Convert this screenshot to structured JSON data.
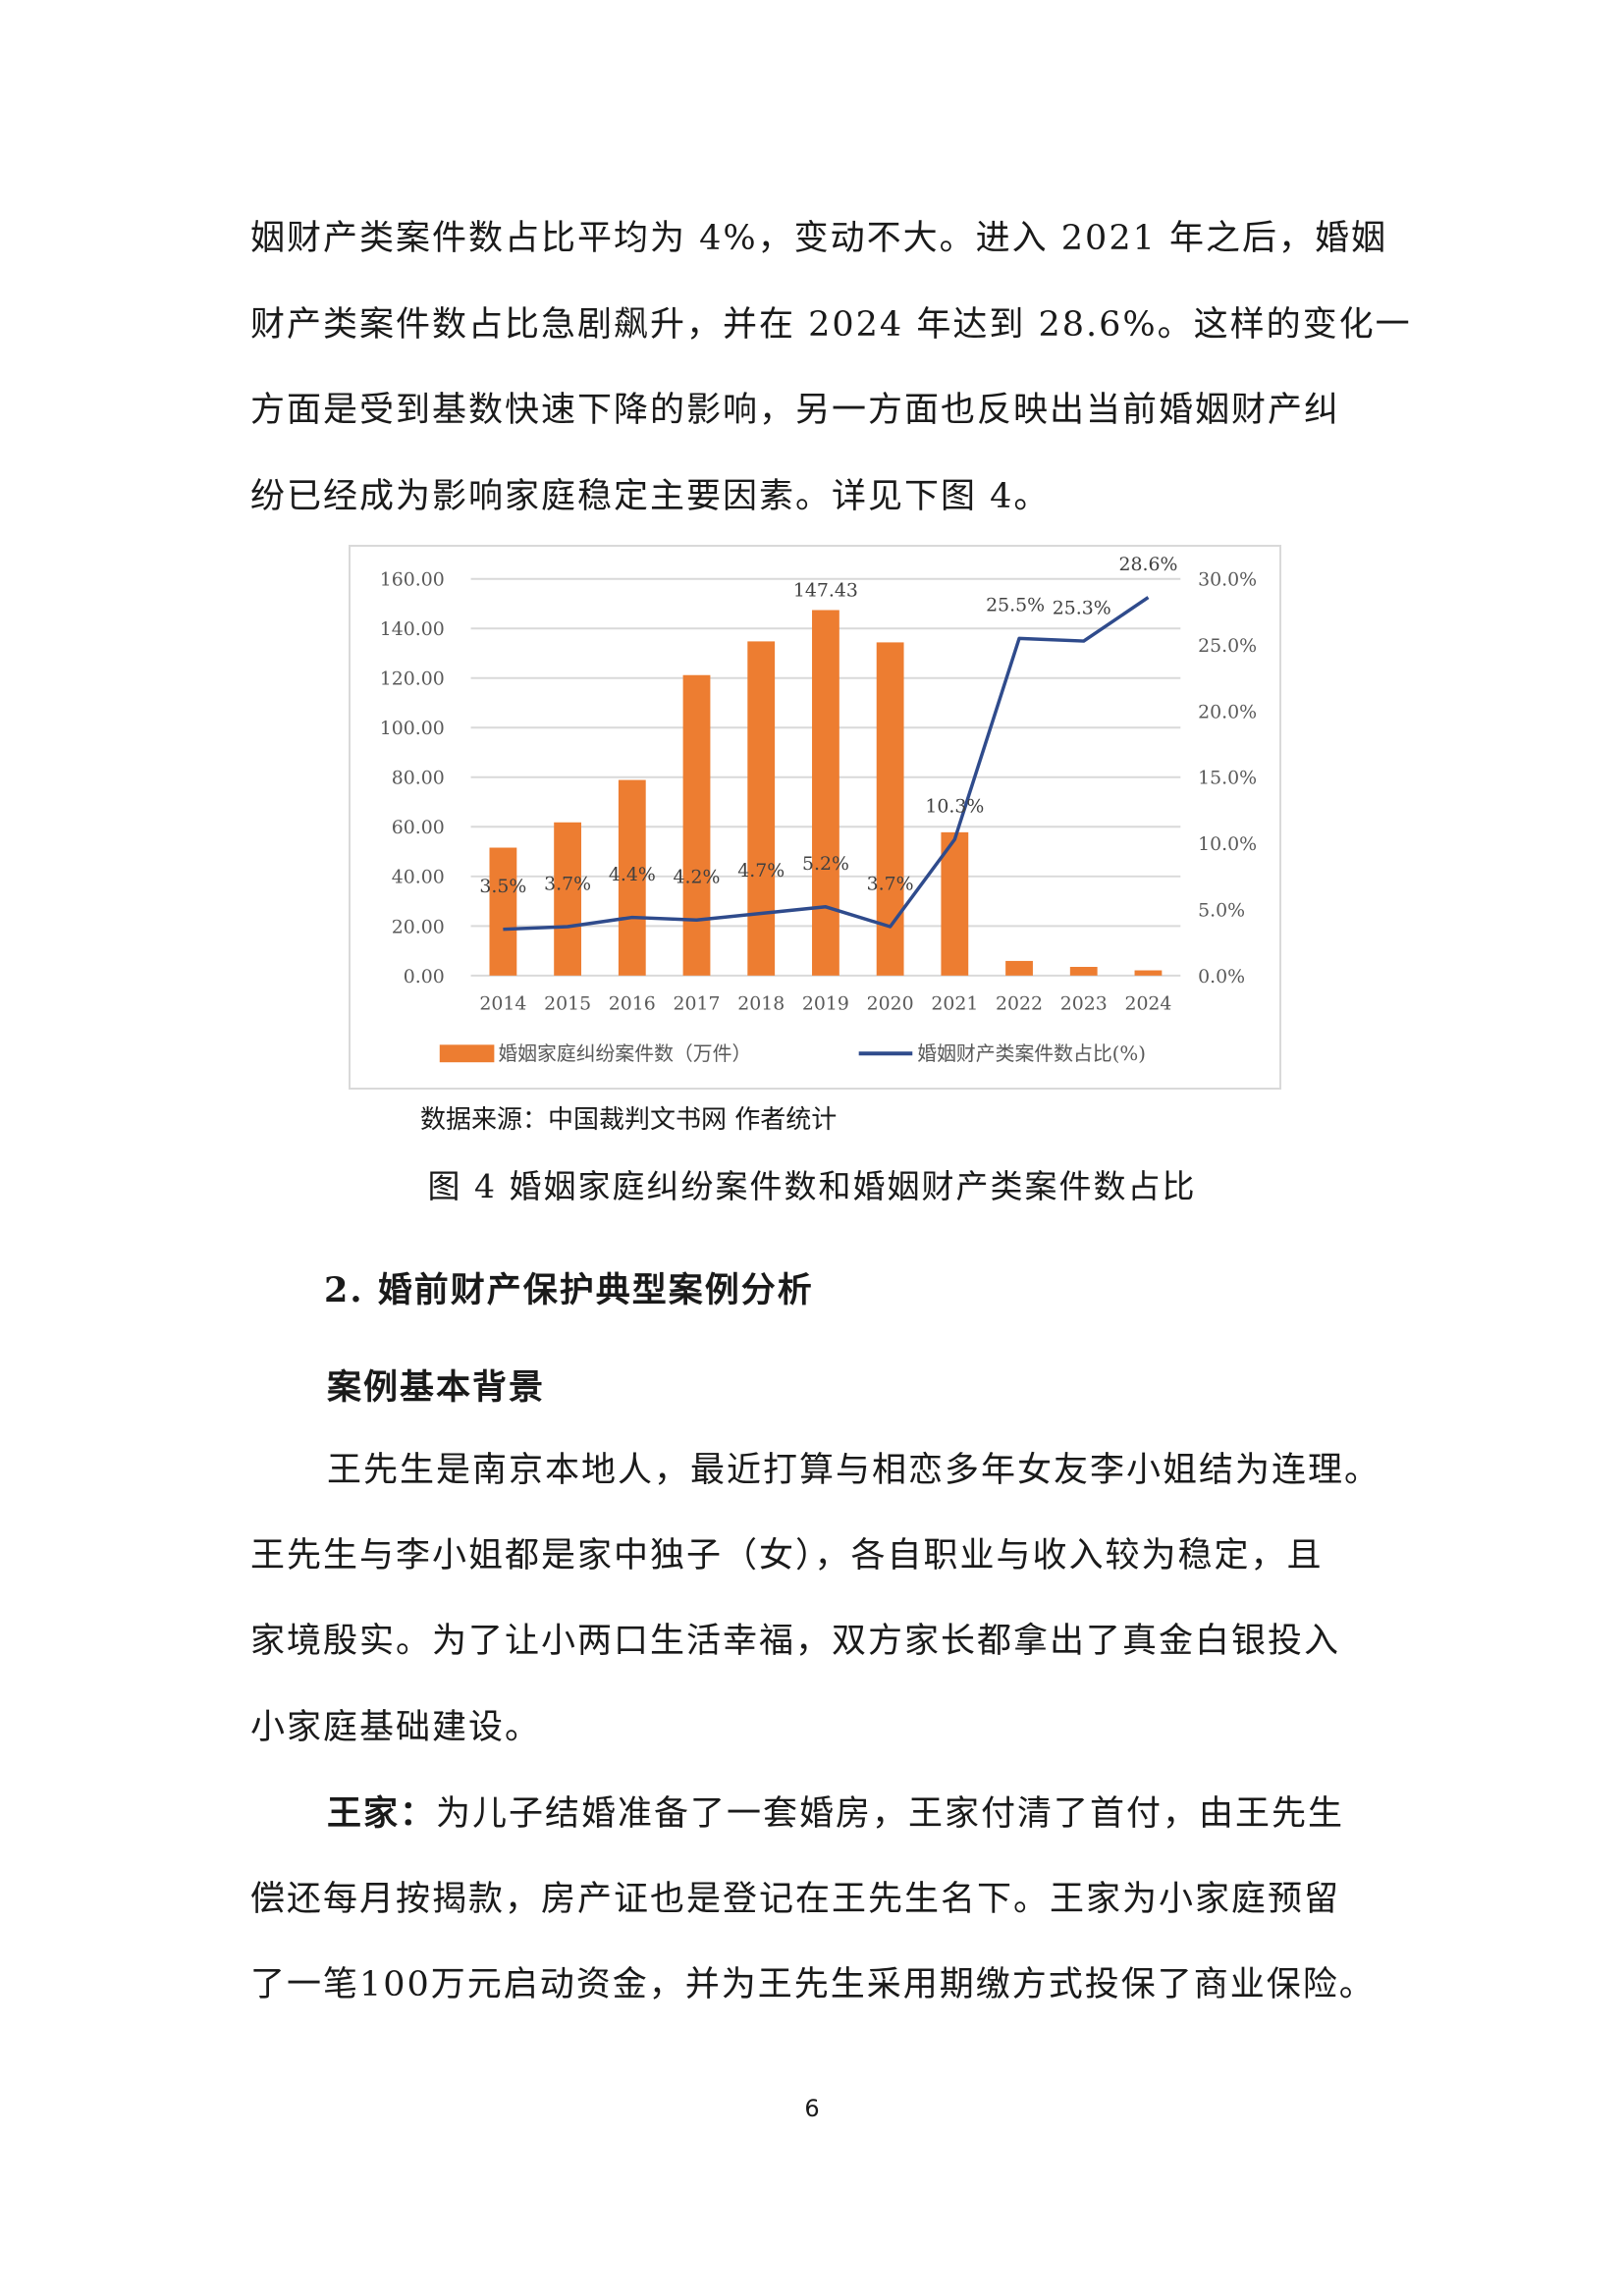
{
  "intro_lines": [
    "姻财产类案件数占比平均为 4%，变动不大。进入 2021 年之后，婚姻",
    "财产类案件数占比急剧飙升，并在 2024 年达到 28.6%。这样的变化一",
    "方面是受到基数快速下降的影响，另一方面也反映出当前婚姻财产纠",
    "纷已经成为影响家庭稳定主要因素。详见下图 4。"
  ],
  "chart_data": {
    "type": "bar+line",
    "categories": [
      "2014",
      "2015",
      "2016",
      "2017",
      "2018",
      "2019",
      "2020",
      "2021",
      "2022",
      "2023",
      "2024"
    ],
    "series": [
      {
        "name": "婚姻家庭纠纷案件数（万件）",
        "type": "bar",
        "axis": "left",
        "color": "#ED7D31",
        "values": [
          51.6,
          61.8,
          78.9,
          121.2,
          134.8,
          147.43,
          134.4,
          57.8,
          5.9,
          3.5,
          2.1
        ],
        "data_labels": {
          "5": "147.43"
        }
      },
      {
        "name": "婚姻财产类案件数占比(%)",
        "type": "line",
        "axis": "right",
        "color": "#2F4B8C",
        "values": [
          3.5,
          3.7,
          4.4,
          4.2,
          4.7,
          5.2,
          3.7,
          10.3,
          25.5,
          25.3,
          28.6
        ],
        "data_labels": [
          "3.5%",
          "3.7%",
          "4.4%",
          "4.2%",
          "4.7%",
          "5.2%",
          "3.7%",
          "10.3%",
          "25.5%",
          "25.3%",
          "28.6%"
        ]
      }
    ],
    "left_axis": {
      "ylim": [
        0,
        160
      ],
      "ticks": [
        "0.00",
        "20.00",
        "40.00",
        "60.00",
        "80.00",
        "100.00",
        "120.00",
        "140.00",
        "160.00"
      ]
    },
    "right_axis": {
      "ylim": [
        0,
        30
      ],
      "ticks": [
        "0.0%",
        "5.0%",
        "10.0%",
        "15.0%",
        "20.0%",
        "25.0%",
        "30.0%"
      ]
    },
    "grid": true,
    "legend_position": "bottom"
  },
  "source": "数据来源：中国裁判文书网  作者统计",
  "caption": "图 4  婚姻家庭纠纷案件数和婚姻财产类案件数占比",
  "section_heading": "2.  婚前财产保护典型案例分析",
  "subheading": "案例基本背景",
  "para1_lines": [
    "王先生是南京本地人，最近打算与相恋多年女友李小姐结为连理。",
    "王先生与李小姐都是家中独子（女），各自职业与收入较为稳定，且",
    "家境殷实。为了让小两口生活幸福，双方家长都拿出了真金白银投入",
    "小家庭基础建设。"
  ],
  "para2_label": "王家：",
  "para2_lines": [
    "为儿子结婚准备了一套婚房，王家付清了首付，由王先生",
    "偿还每月按揭款，房产证也是登记在王先生名下。王家为小家庭预留",
    "了一笔100万元启动资金，并为王先生采用期缴方式投保了商业保险。"
  ],
  "page_number": "6"
}
